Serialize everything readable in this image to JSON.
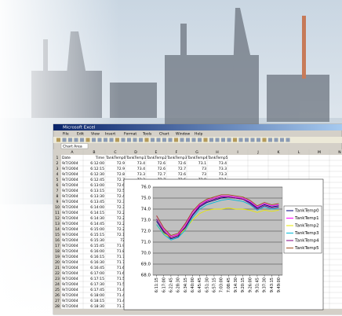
{
  "window": {
    "title": "Microsoft Excel",
    "menu": [
      "File",
      "Edit",
      "View",
      "Insert",
      "Format",
      "Tools",
      "Chart",
      "Window",
      "Help"
    ],
    "name_box": "Chart Area",
    "columns": [
      "A",
      "B",
      "C",
      "D",
      "E",
      "F",
      "G",
      "H",
      "I",
      "J",
      "K",
      "L",
      "M",
      "N"
    ],
    "row_numbers": [
      1,
      2,
      3,
      4,
      5,
      6,
      7,
      8,
      9,
      10,
      11,
      12,
      13,
      14,
      15,
      16,
      17,
      18,
      19,
      20,
      21,
      22,
      23,
      24,
      25,
      26,
      27,
      28
    ],
    "rows": [
      [
        "Date",
        "Time",
        "TankTemp0",
        "TankTemp1",
        "TankTemp2",
        "TankTemp3",
        "TankTemp4",
        "TankTemp5"
      ],
      [
        "9/7/2004",
        "6:12:00",
        72.9,
        73.4,
        72.6,
        72.6,
        73.1,
        73.4
      ],
      [
        "9/7/2004",
        "6:12:15",
        72.9,
        73.4,
        72.6,
        72.7,
        73.0,
        73.3
      ],
      [
        "9/7/2004",
        "6:12:30",
        72.8,
        73.3,
        72.7,
        72.6,
        73.0,
        73.3
      ],
      [
        "9/7/2004",
        "6:12:45",
        72.7,
        73.2,
        72.7,
        72.6,
        72.9,
        73.1
      ],
      [
        "9/7/2004",
        "6:13:00",
        72.6
      ],
      [
        "9/7/2004",
        "6:13:15",
        72.5
      ],
      [
        "9/7/2004",
        "6:13:30",
        72.4
      ],
      [
        "9/7/2004",
        "6:13:45",
        72.3
      ],
      [
        "9/7/2004",
        "6:14:00",
        72.3
      ],
      [
        "9/7/2004",
        "6:14:15",
        72.2
      ],
      [
        "9/7/2004",
        "6:14:30",
        72.2
      ],
      [
        "9/7/2004",
        "6:14:45",
        72.2
      ],
      [
        "9/7/2004",
        "6:15:00",
        72.2
      ],
      [
        "9/7/2004",
        "6:15:15",
        72.1
      ],
      [
        "9/7/2004",
        "6:15:30",
        72.0
      ],
      [
        "9/7/2004",
        "6:15:45",
        71.9
      ],
      [
        "9/7/2004",
        "6:16:00",
        71.8
      ],
      [
        "9/7/2004",
        "6:16:15",
        71.7
      ],
      [
        "9/7/2004",
        "6:16:30",
        71.7
      ],
      [
        "9/7/2004",
        "6:16:45",
        71.6
      ],
      [
        "9/7/2004",
        "6:17:00",
        71.6
      ],
      [
        "9/7/2004",
        "6:17:15",
        71.5
      ],
      [
        "9/7/2004",
        "6:17:30",
        71.5
      ],
      [
        "9/7/2004",
        "6:17:45",
        71.4
      ],
      [
        "9/7/2004",
        "6:18:00",
        71.4
      ],
      [
        "9/7/2004",
        "6:18:15",
        71.4
      ],
      [
        "9/7/2004",
        "6:18:30",
        71.3
      ]
    ]
  },
  "chart": {
    "type": "line",
    "categories": [
      "6:11:15",
      "6:17:00",
      "6:22:45",
      "6:28:30",
      "6:34:15",
      "6:40:00",
      "6:45:45",
      "6:51:30",
      "6:57:15",
      "7:03:00",
      "7:08:45",
      "9:14:30",
      "9:20:15",
      "9:26:00",
      "9:31:45",
      "9:37:30",
      "9:43:15",
      "9:49:00"
    ],
    "ylim": [
      68,
      76
    ],
    "yticks": [
      {
        "value": 68,
        "label": "68.0"
      },
      {
        "value": 69,
        "label": "69.0"
      },
      {
        "value": 70,
        "label": "70.0"
      },
      {
        "value": 71,
        "label": "71.0"
      },
      {
        "value": 72,
        "label": "72.0"
      },
      {
        "value": 73,
        "label": "73.0"
      },
      {
        "value": 74,
        "label": "74.0"
      },
      {
        "value": 75,
        "label": "75.0"
      },
      {
        "value": 76,
        "label": "76.0"
      }
    ],
    "grid": true,
    "series": [
      {
        "name": "TankTemp0",
        "color": "#000080",
        "values": [
          72.9,
          71.9,
          71.3,
          71.5,
          72.3,
          73.4,
          74.2,
          74.6,
          74.8,
          75.0,
          75.1,
          75.0,
          74.9,
          74.6,
          74.1,
          74.4,
          74.2,
          74.3
        ]
      },
      {
        "name": "TankTemp1",
        "color": "#ff00ff",
        "values": [
          73.4,
          72.2,
          71.5,
          71.7,
          72.6,
          73.7,
          74.4,
          74.8,
          75.0,
          75.2,
          75.2,
          75.1,
          75.0,
          74.7,
          74.2,
          74.5,
          74.3,
          74.4
        ]
      },
      {
        "name": "TankTemp2",
        "color": "#e8e800",
        "values": [
          72.6,
          71.8,
          71.4,
          71.6,
          72.2,
          73.0,
          73.6,
          73.9,
          74.0,
          74.0,
          74.1,
          74.0,
          74.0,
          73.9,
          73.7,
          73.9,
          73.8,
          73.9
        ]
      },
      {
        "name": "TankTemp3",
        "color": "#00b8d8",
        "values": [
          72.6,
          71.7,
          71.2,
          71.4,
          72.1,
          73.2,
          74.0,
          74.4,
          74.6,
          74.8,
          74.9,
          74.8,
          74.7,
          74.4,
          73.9,
          74.2,
          74.0,
          74.1
        ]
      },
      {
        "name": "TankTemp4",
        "color": "#800080",
        "values": [
          73.1,
          72.0,
          71.4,
          71.6,
          72.4,
          73.5,
          74.3,
          74.7,
          74.9,
          75.1,
          75.1,
          75.0,
          74.9,
          74.5,
          74.0,
          74.3,
          74.1,
          74.2
        ]
      },
      {
        "name": "TankTemp5",
        "color": "#a05020",
        "values": [
          73.4,
          72.3,
          71.6,
          71.8,
          72.7,
          73.8,
          74.5,
          74.9,
          75.1,
          75.3,
          75.3,
          75.2,
          75.1,
          74.8,
          74.3,
          74.6,
          74.4,
          74.5
        ]
      }
    ]
  }
}
